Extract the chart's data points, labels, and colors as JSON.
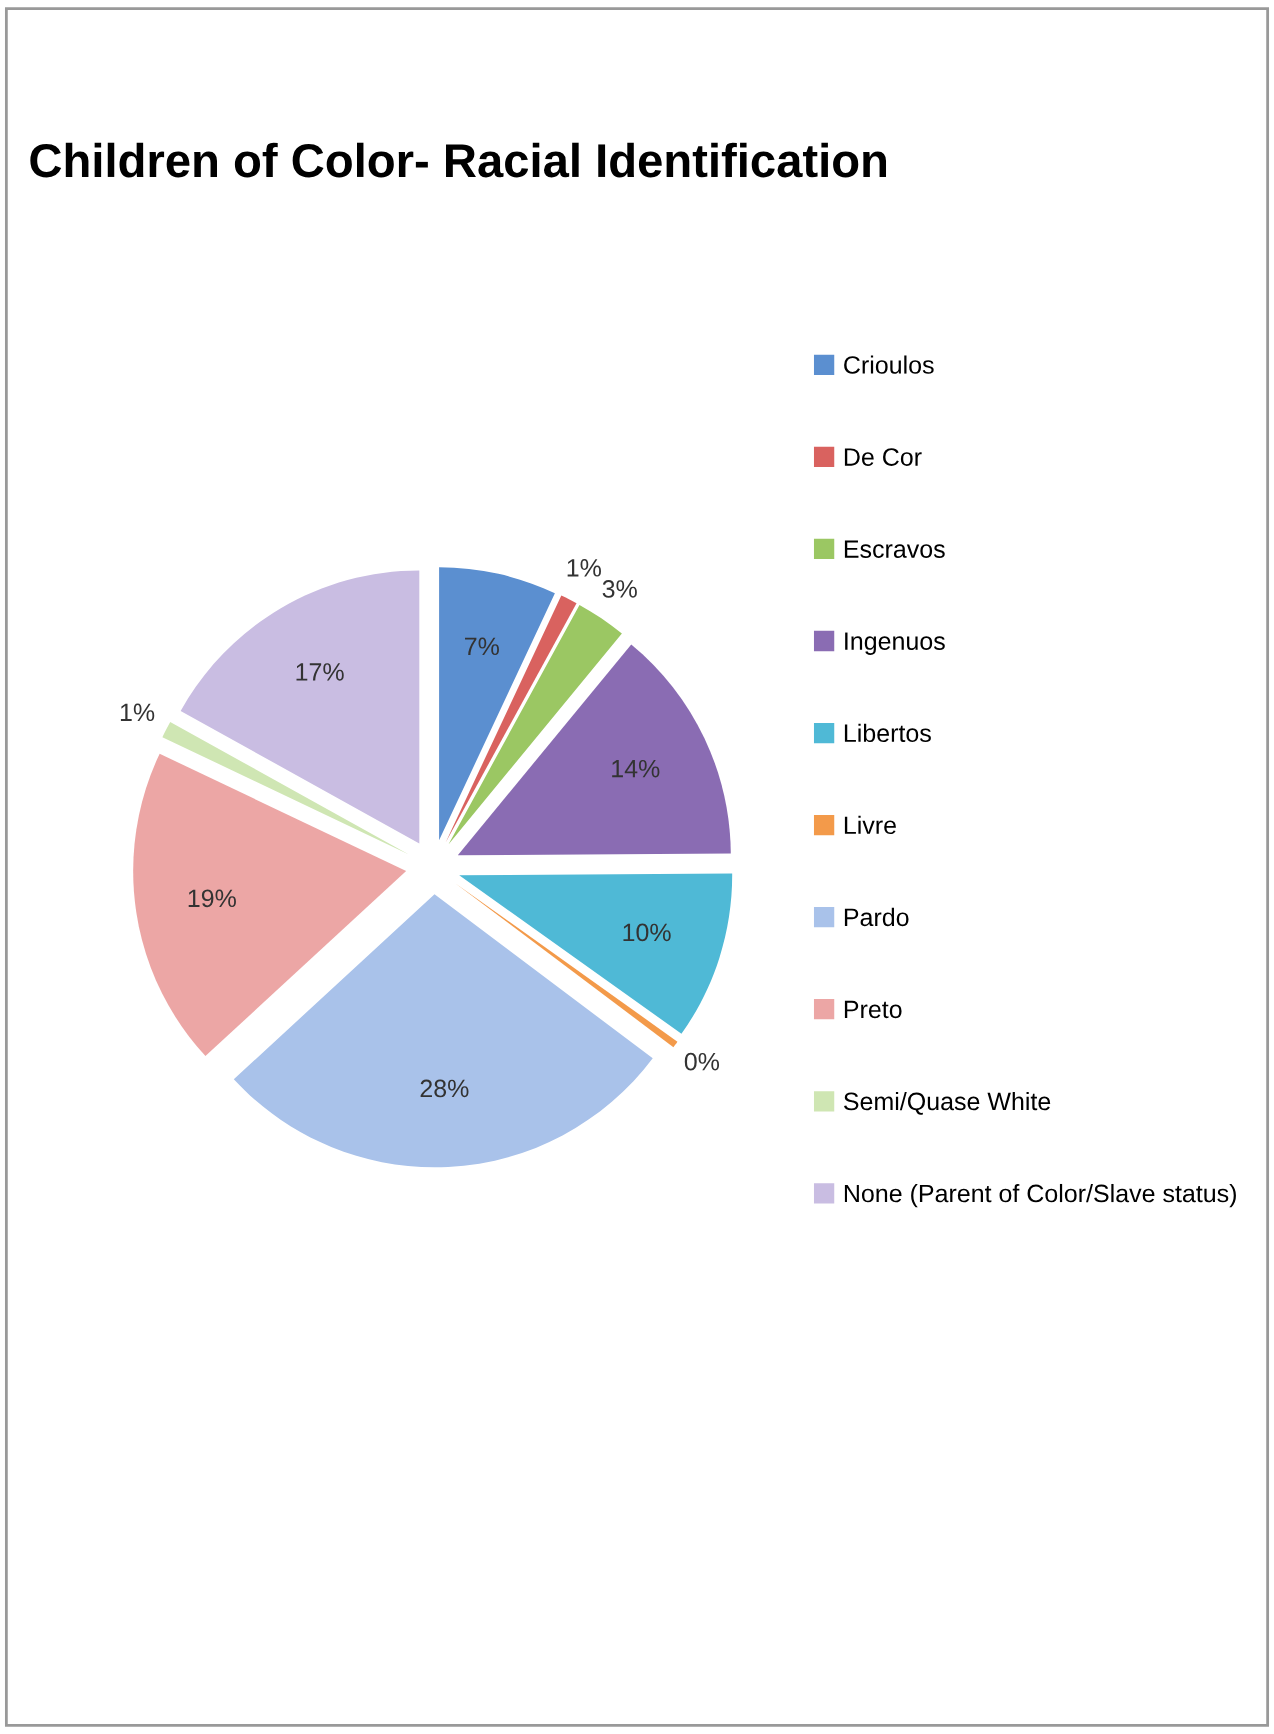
{
  "chart_data": {
    "type": "pie",
    "title": "Children of Color- Racial Identification",
    "categories": [
      "Crioulos",
      "De Cor",
      "Escravos",
      "Ingenuos",
      "Libertos",
      "Livre",
      "Pardo",
      "Preto",
      "Semi/Quase White",
      "None (Parent of Color/Slave status)"
    ],
    "values": [
      7,
      1,
      3,
      14,
      10,
      0.4,
      28,
      19,
      1,
      17
    ],
    "value_labels": [
      "7%",
      "1%",
      "3%",
      "14%",
      "10%",
      "0%",
      "28%",
      "19%",
      "1%",
      "17%"
    ],
    "colors": [
      "#5b8fd0",
      "#d9625f",
      "#9bc763",
      "#8a6cb3",
      "#4fb9d6",
      "#f39a4a",
      "#a9c2ea",
      "#eca6a5",
      "#cfe6b3",
      "#c9bde2"
    ],
    "legend": "right"
  }
}
